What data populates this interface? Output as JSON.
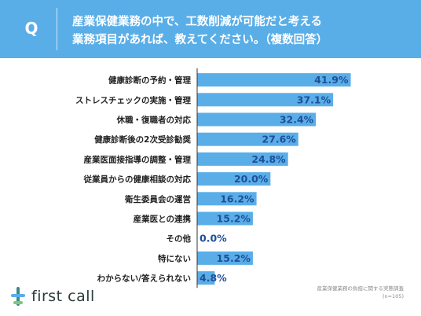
{
  "header": {
    "badge": "Q",
    "title_line1": "産業保健業務の中で、工数削減が可能だと考える",
    "title_line2": "業務項目があれば、教えてください。（複数回答）"
  },
  "chart_data": {
    "type": "bar",
    "orientation": "horizontal",
    "categories": [
      "健康診断の予約・管理",
      "ストレスチェックの実施・管理",
      "休職・復職者の対応",
      "健康診断後の2次受診勧奨",
      "産業医面接指導の調整・管理",
      "従業員からの健康相談の対応",
      "衛生委員会の運営",
      "産業医との連携",
      "その他",
      "特にない",
      "わからない/答えられない"
    ],
    "values": [
      41.9,
      37.1,
      32.4,
      27.6,
      24.8,
      20.0,
      16.2,
      15.2,
      0.0,
      15.2,
      4.8
    ],
    "value_labels": [
      "41.9%",
      "37.1%",
      "32.4%",
      "27.6%",
      "24.8%",
      "20.0%",
      "16.2%",
      "15.2%",
      "0.0%",
      "15.2%",
      "4.8%"
    ],
    "xlim": [
      0,
      45
    ],
    "bar_color": "#5aaee8",
    "value_color": "#1e4e9a"
  },
  "footer": {
    "logo_text": "first call",
    "source_line1": "産業保健業務の負担に関する実態調査",
    "source_line2": "(n=105)"
  }
}
